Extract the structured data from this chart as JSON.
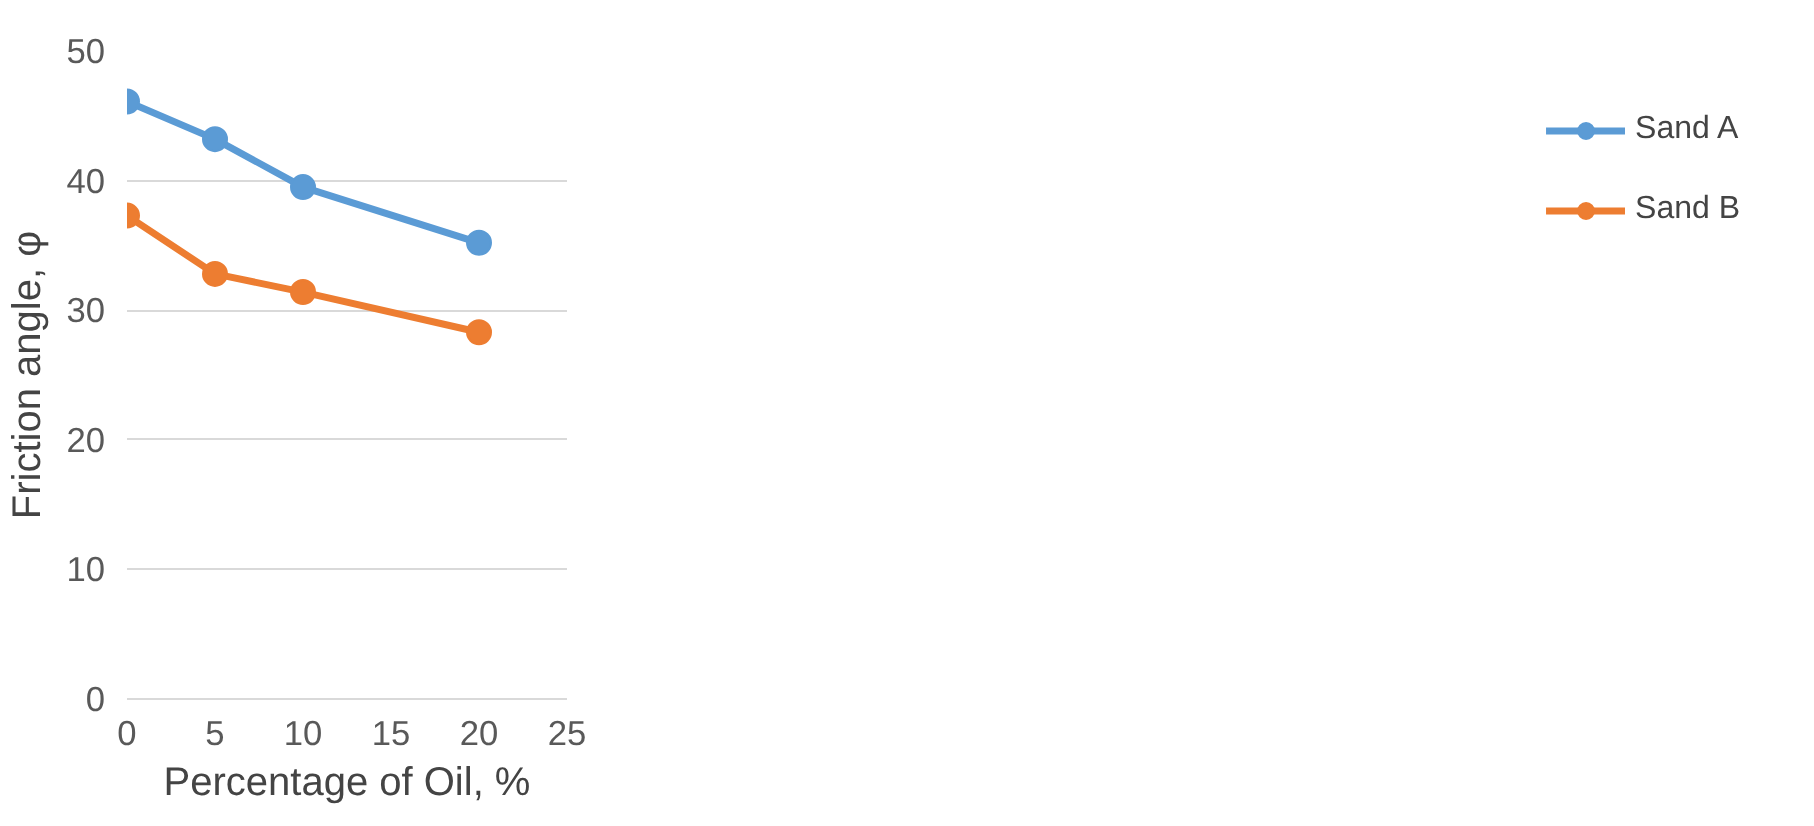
{
  "chart_data": {
    "type": "line",
    "xlabel": "Percentage of Oil, %",
    "ylabel": "Friction angle, φ",
    "x": [
      0,
      5,
      10,
      20
    ],
    "series": [
      {
        "name": "Sand A",
        "color": "#5b9bd5",
        "values": [
          46.1,
          43.2,
          39.5,
          35.2
        ]
      },
      {
        "name": "Sand B",
        "color": "#ed7d31",
        "values": [
          37.3,
          32.8,
          31.4,
          28.3
        ]
      }
    ],
    "xlim": [
      0,
      25
    ],
    "xticks": [
      0,
      5,
      10,
      15,
      20,
      25
    ],
    "ylim": [
      0,
      50
    ],
    "yticks": [
      0,
      10,
      20,
      30,
      40,
      50
    ],
    "grid": "y",
    "legend": "right",
    "marker": "circle",
    "line_style": "solid"
  }
}
